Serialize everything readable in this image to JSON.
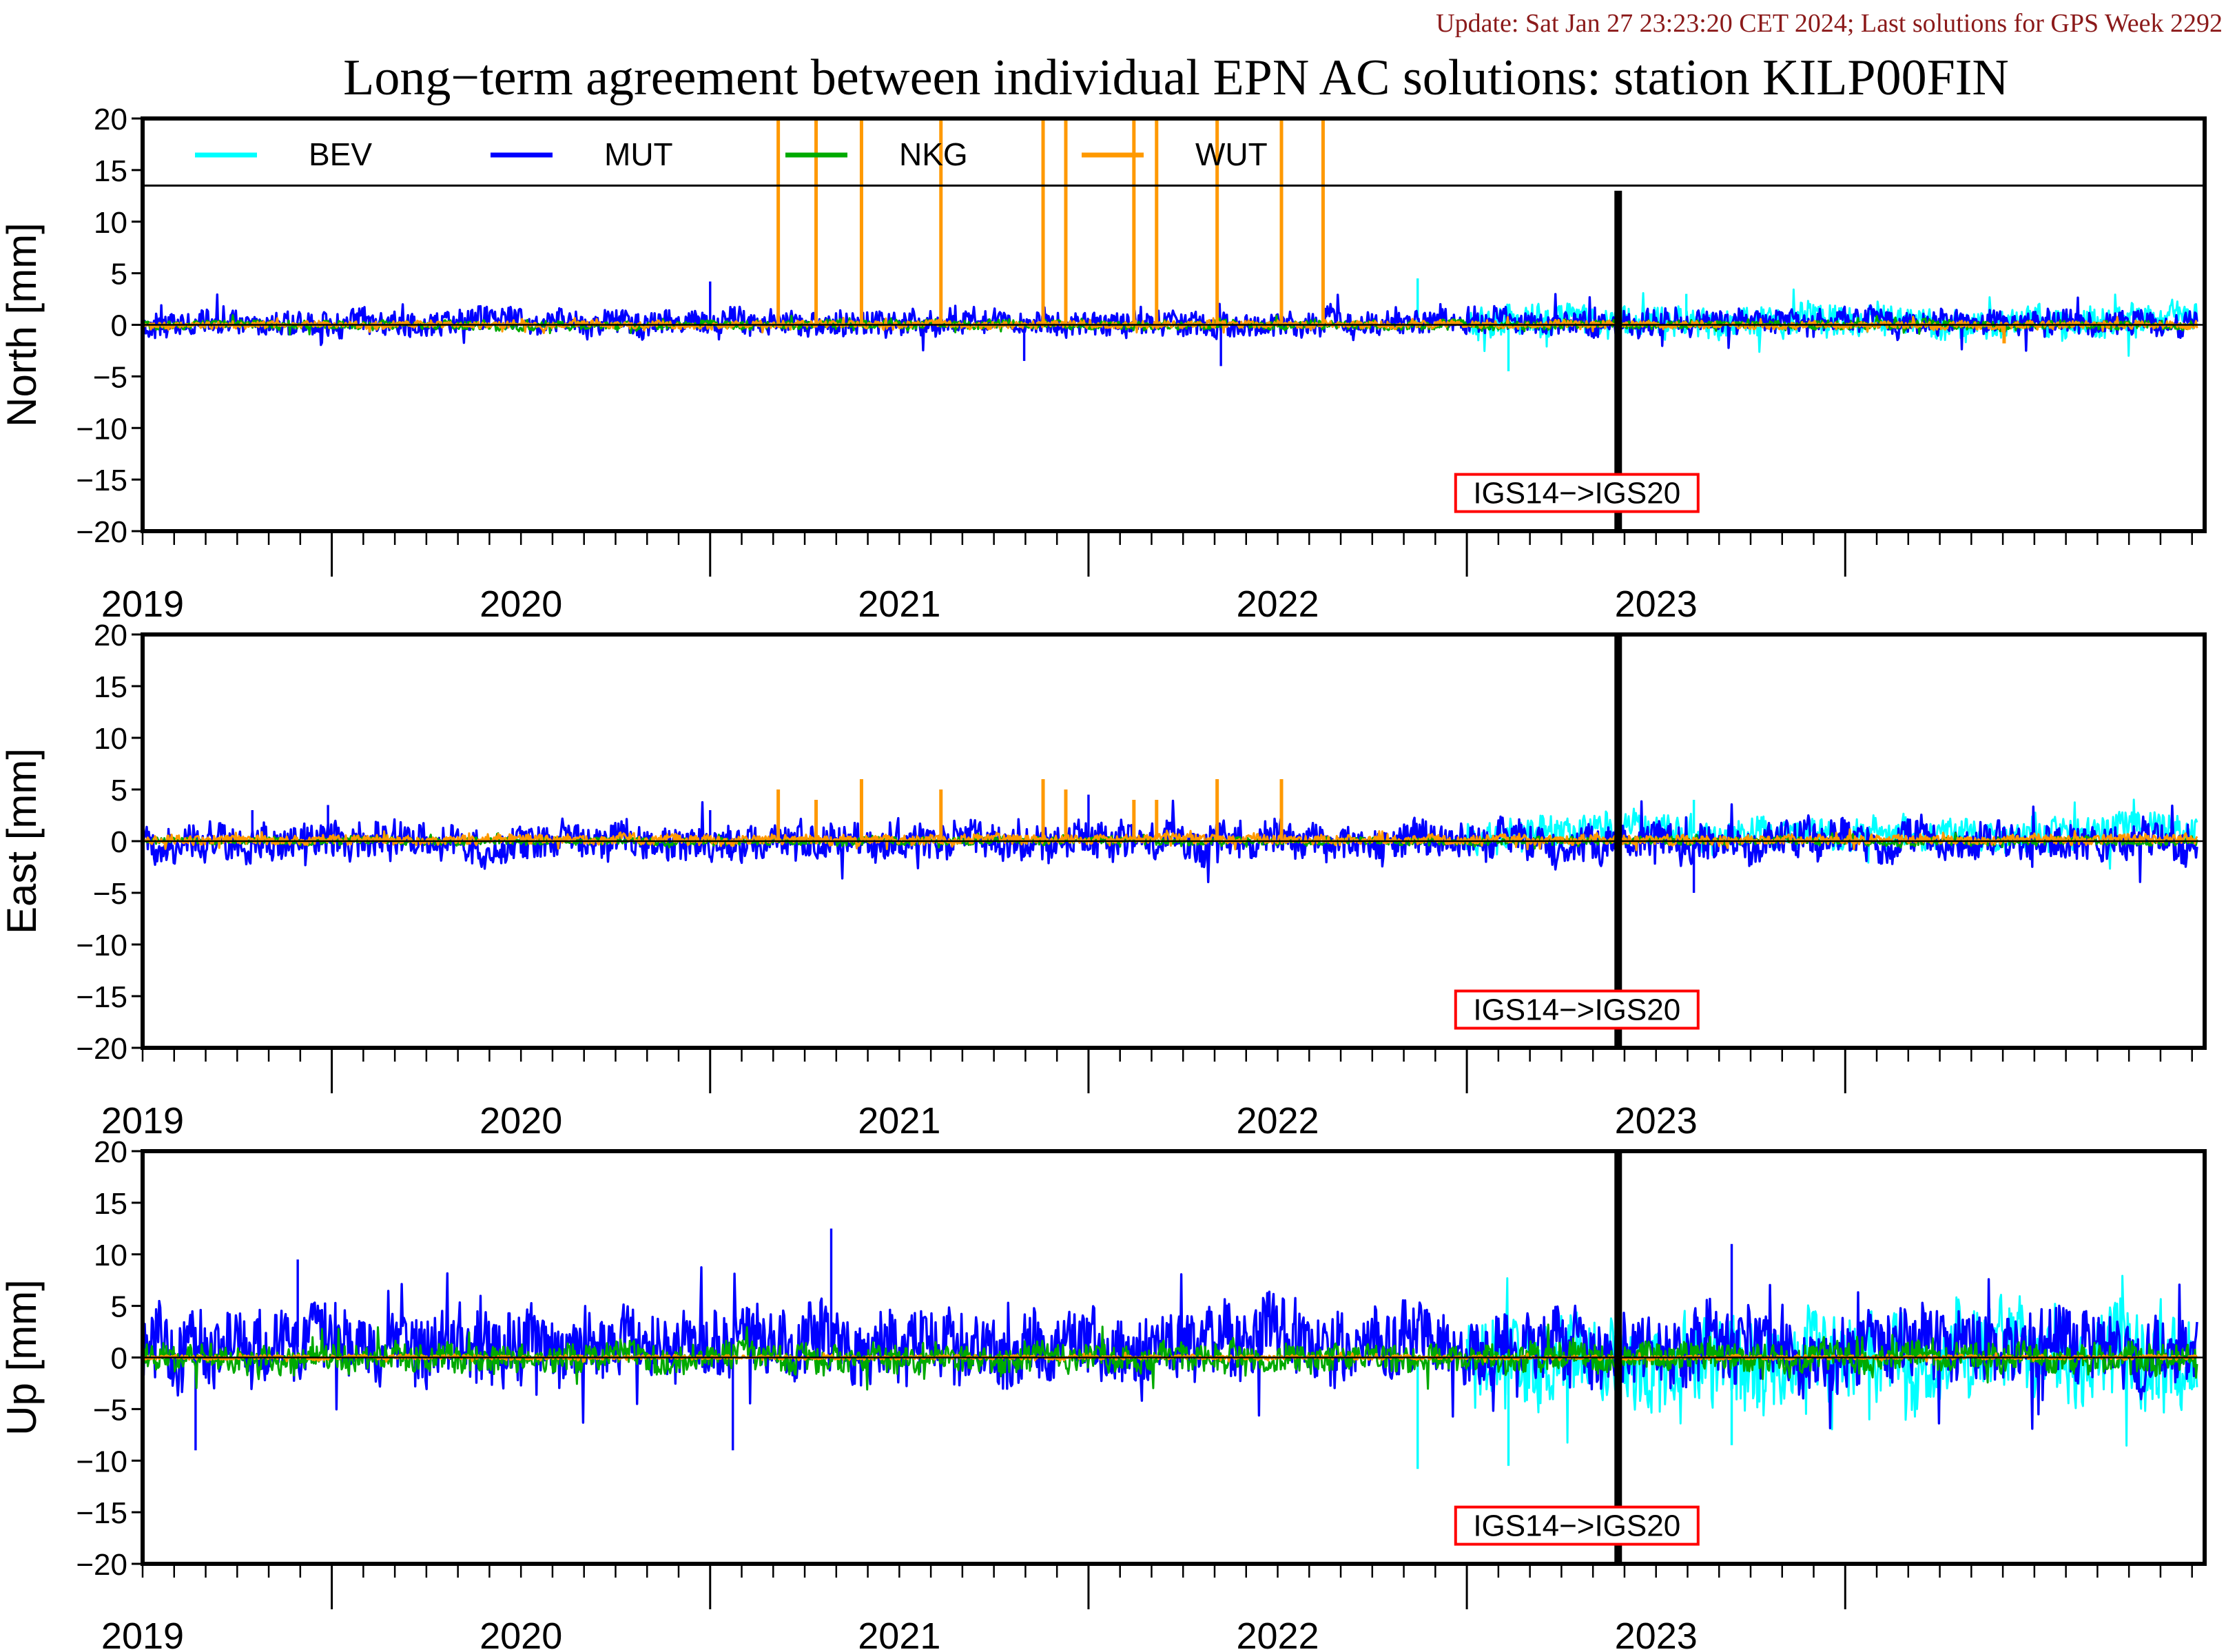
{
  "update_text": "Update: Sat Jan 27 23:23:20 CET 2024; Last solutions for GPS Week 2292",
  "colors": {
    "update_text": "#8b1a1a",
    "BEV": "#00ffff",
    "MUT": "#0000ff",
    "NKG": "#00aa00",
    "WUT": "#ff9900",
    "frame_box": "#ff0000"
  },
  "chart_data": {
    "type": "line",
    "title": "Long−term agreement between individual EPN AC solutions: station KILP00FIN",
    "legend": {
      "placement": "top",
      "entries": [
        "BEV",
        "MUT",
        "NKG",
        "WUT"
      ]
    },
    "x_tick_labels": [
      "2019",
      "2020",
      "2021",
      "2022",
      "2023"
    ],
    "xlim": [
      2018.5,
      2023.95
    ],
    "ylim": [
      -20,
      20
    ],
    "y_ticks": [
      "20",
      "15",
      "10",
      "5",
      "0",
      "−5",
      "−10",
      "−15",
      "−20"
    ],
    "reference_line": 0,
    "frame_change": {
      "x": 2022.4,
      "label": "IGS14−>IGS20"
    },
    "panels": [
      {
        "ylabel": "North [mm]",
        "series": [
          {
            "name": "BEV",
            "x_range": [
              2022.0,
              2023.93
            ],
            "typical_y": [
              -2.0,
              2.5
            ],
            "spikes": [
              [
                2021.87,
                4.5
              ],
              [
                2022.11,
                -4.5
              ],
              [
                2022.58,
                3.0
              ]
            ]
          },
          {
            "name": "MUT",
            "x_range": [
              2018.5,
              2023.93
            ],
            "typical_y": [
              -1.5,
              2.0
            ],
            "spikes": [
              [
                2020.0,
                4.2
              ],
              [
                2020.83,
                -3.5
              ],
              [
                2021.35,
                -4.0
              ]
            ]
          },
          {
            "name": "NKG",
            "x_range": [
              2018.5,
              2023.93
            ],
            "typical_y": [
              -0.6,
              0.6
            ],
            "spikes": []
          },
          {
            "name": "WUT",
            "x_range": [
              2018.5,
              2023.93
            ],
            "typical_y": [
              -0.5,
              0.5
            ],
            "spikes": [
              [
                2020.18,
                20
              ],
              [
                2020.28,
                20
              ],
              [
                2020.4,
                20
              ],
              [
                2020.61,
                20
              ],
              [
                2020.88,
                20
              ],
              [
                2020.94,
                20
              ],
              [
                2021.12,
                20
              ],
              [
                2021.18,
                20
              ],
              [
                2021.34,
                20
              ],
              [
                2021.51,
                20
              ],
              [
                2021.62,
                20
              ],
              [
                2023.42,
                -1.8
              ]
            ]
          }
        ]
      },
      {
        "ylabel": "East [mm]",
        "series": [
          {
            "name": "BEV",
            "x_range": [
              2022.0,
              2023.93
            ],
            "typical_y": [
              -1.5,
              3.0
            ],
            "spikes": [
              [
                2022.4,
                4.5
              ],
              [
                2022.6,
                4.0
              ]
            ]
          },
          {
            "name": "MUT",
            "x_range": [
              2018.5,
              2023.93
            ],
            "typical_y": [
              -2.5,
              2.5
            ],
            "spikes": [
              [
                2018.79,
                3.0
              ],
              [
                2018.99,
                3.5
              ],
              [
                2020.0,
                3.0
              ],
              [
                2021.0,
                4.5
              ],
              [
                2022.6,
                -5.0
              ]
            ]
          },
          {
            "name": "NKG",
            "x_range": [
              2018.5,
              2023.93
            ],
            "typical_y": [
              -0.5,
              0.5
            ],
            "spikes": []
          },
          {
            "name": "WUT",
            "x_range": [
              2018.5,
              2023.93
            ],
            "typical_y": [
              -0.5,
              0.8
            ],
            "spikes": [
              [
                2020.18,
                5.0
              ],
              [
                2020.28,
                4.0
              ],
              [
                2020.4,
                6.0
              ],
              [
                2020.61,
                5.0
              ],
              [
                2020.88,
                6.0
              ],
              [
                2020.94,
                5.0
              ],
              [
                2021.12,
                4.0
              ],
              [
                2021.18,
                4.0
              ],
              [
                2021.34,
                6.0
              ],
              [
                2021.51,
                6.0
              ]
            ]
          }
        ]
      },
      {
        "ylabel": "Up [mm]",
        "series": [
          {
            "name": "BEV",
            "x_range": [
              2022.0,
              2023.93
            ],
            "typical_y": [
              -6.0,
              6.0
            ],
            "spikes": [
              [
                2021.87,
                -10.8
              ],
              [
                2022.11,
                -10.5
              ],
              [
                2022.7,
                -8.5
              ]
            ]
          },
          {
            "name": "MUT",
            "x_range": [
              2018.5,
              2023.93
            ],
            "typical_y": [
              -4.0,
              6.0
            ],
            "spikes": [
              [
                2018.64,
                -9.0
              ],
              [
                2018.91,
                9.5
              ],
              [
                2020.32,
                12.5
              ],
              [
                2022.7,
                11.0
              ],
              [
                2020.06,
                -9.0
              ]
            ]
          },
          {
            "name": "NKG",
            "x_range": [
              2018.5,
              2023.93
            ],
            "typical_y": [
              -2.0,
              2.0
            ],
            "spikes": []
          },
          {
            "name": "WUT",
            "x_range": [
              2018.5,
              2023.93
            ],
            "typical_y": [
              -0.3,
              0.3
            ],
            "spikes": []
          }
        ]
      }
    ]
  }
}
